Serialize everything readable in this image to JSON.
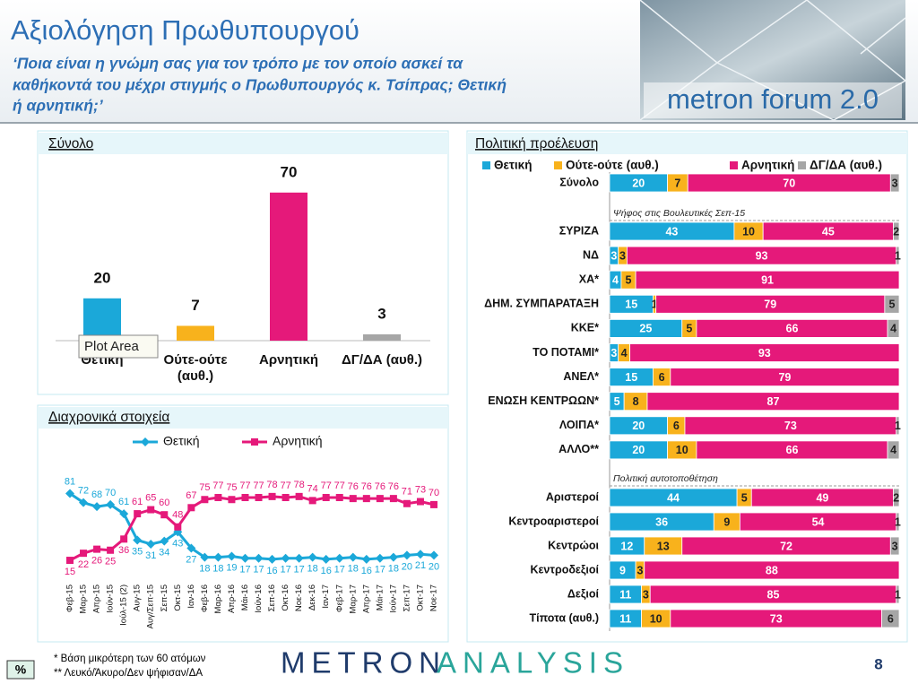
{
  "header": {
    "title": "Αξιολόγηση Πρωθυπουργού",
    "subtitle": [
      "‘Ποια είναι η γνώμη σας για τον τρόπο με τον οποίο ασκεί τα",
      "καθήκοντά του μέχρι στιγμής ο Πρωθυπουργός κ. Τσίπρας; Θετική",
      "ή αρνητική;’"
    ],
    "logo": "metron forum 2.0"
  },
  "chart_data": [
    {
      "type": "bar",
      "title": "Σύνολο",
      "categories": [
        "Θετική",
        "Ούτε-ούτε (αυθ.)",
        "Αρνητική",
        "ΔΓ/ΔΑ (αυθ.)"
      ],
      "values": [
        20,
        7,
        70,
        3
      ],
      "colors": [
        "#1ba8d9",
        "#f8b21c",
        "#e5197a",
        "#a6a6a6"
      ],
      "tooltip": "Plot Area"
    },
    {
      "type": "line",
      "title": "Διαχρονικά στοιχεία",
      "categories": [
        "Φεβ-15",
        "Μαρ-15",
        "Απρ-15",
        "Ιούν-15",
        "Ιούλ-15 (2)",
        "Αυγ-15",
        "Αυγ/Σεπ-15",
        "Σεπ-15",
        "Οκτ-15",
        "Ιαν-16",
        "Φεβ-16",
        "Μαρ-16",
        "Απρ-16",
        "Μάι-16",
        "Ιούν-16",
        "Σεπ-16",
        "Οκτ-16",
        "Νοε-16",
        "Δεκ-16",
        "Ιαν-17",
        "Φεβ-17",
        "Μαρ-17",
        "Απρ-17",
        "Μάι-17",
        "Ιούν-17",
        "Σεπ-17",
        "Οκτ-17",
        "Νοε-17"
      ],
      "series": [
        {
          "name": "Θετική",
          "color": "#1ba8d9",
          "marker": "diamond",
          "values": [
            81,
            72,
            68,
            70,
            61,
            35,
            31,
            34,
            43,
            27,
            18,
            18,
            19,
            17,
            17,
            16,
            17,
            17,
            18,
            16,
            17,
            18,
            16,
            17,
            18,
            20,
            21,
            20
          ]
        },
        {
          "name": "Αρνητική",
          "color": "#e5197a",
          "marker": "square",
          "values": [
            15,
            22,
            26,
            25,
            36,
            61,
            65,
            60,
            48,
            67,
            75,
            77,
            75,
            77,
            77,
            78,
            77,
            78,
            74,
            77,
            77,
            76,
            76,
            76,
            76,
            71,
            73,
            70
          ]
        }
      ]
    },
    {
      "type": "bar",
      "orientation": "horizontal",
      "stacked": true,
      "title": "Πολιτική προέλευση",
      "categories": [
        "Σύνολο",
        "ΣΥΡΙΖΑ",
        "ΝΔ",
        "ΧΑ*",
        "ΔΗΜ. ΣΥΜΠΑΡΑΤΑΞΗ",
        "ΚΚΕ*",
        "ΤΟ ΠΟΤΑΜΙ*",
        "ΑΝΕΛ*",
        "ΕΝΩΣΗ ΚΕΝΤΡΩΩΝ*",
        "ΛΟΙΠΑ*",
        "ΑΛΛΟ**",
        "Αριστεροί",
        "Κεντροαριστεροί",
        "Κεντρώοι",
        "Κεντροδεξιοί",
        "Δεξιοί",
        "Τίποτα (αυθ.)"
      ],
      "group_labels": [
        "Ψήφος στις Βουλευτικές Σεπ-15",
        "Πολιτική αυτοτοποθέτηση"
      ],
      "series": [
        {
          "name": "Θετική",
          "color": "#1ba8d9",
          "values": [
            20,
            43,
            3,
            4,
            15,
            25,
            3,
            15,
            5,
            20,
            20,
            44,
            36,
            12,
            9,
            11,
            11
          ]
        },
        {
          "name": "Ούτε-ούτε (αυθ.)",
          "color": "#f8b21c",
          "values": [
            7,
            10,
            3,
            5,
            1,
            5,
            4,
            6,
            8,
            6,
            10,
            5,
            9,
            13,
            3,
            3,
            10
          ]
        },
        {
          "name": "Αρνητική",
          "color": "#e5197a",
          "values": [
            70,
            45,
            93,
            91,
            79,
            66,
            93,
            79,
            87,
            73,
            66,
            49,
            54,
            72,
            88,
            85,
            73
          ]
        },
        {
          "name": "ΔΓ/ΔΑ (αυθ.)",
          "color": "#a6a6a6",
          "values": [
            3,
            2,
            1,
            null,
            5,
            4,
            null,
            null,
            null,
            1,
            4,
            2,
            1,
            3,
            null,
            1,
            6
          ]
        }
      ]
    }
  ],
  "footer": {
    "unit": "%",
    "notes": [
      "*  Βάση μικρότερη των 60 ατόμων",
      "** Λευκό/Άκυρο/Δεν ψήφισαν/ΔΑ"
    ],
    "brand": [
      "METRON",
      "ANALYSIS"
    ],
    "page": 8
  }
}
